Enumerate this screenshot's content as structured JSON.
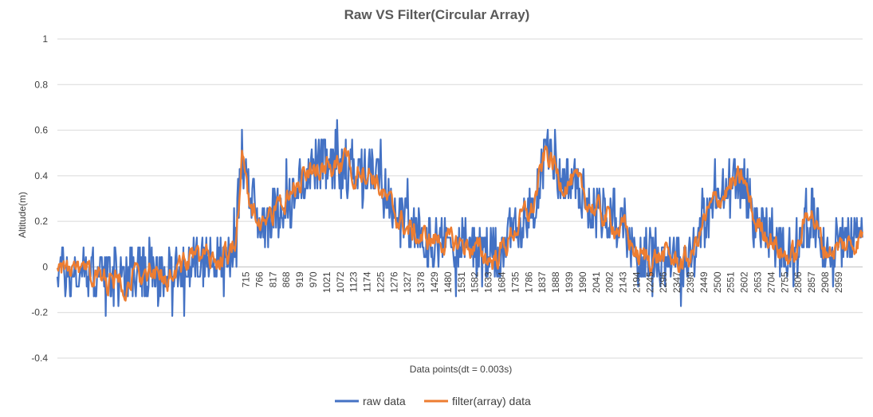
{
  "chart_data": {
    "type": "line",
    "title": "Raw VS Filter(Circular Array)",
    "xlabel": "Data points(dt = 0.003s)",
    "ylabel": "Altitude(m)",
    "ylim": [
      -0.4,
      1
    ],
    "yticks": [
      -0.4,
      -0.2,
      0,
      0.2,
      0.4,
      0.6,
      0.8,
      1
    ],
    "xlim": [
      1,
      3050
    ],
    "xticks": [
      715,
      766,
      817,
      868,
      919,
      970,
      1021,
      1072,
      1123,
      1174,
      1225,
      1276,
      1327,
      1378,
      1429,
      1480,
      1531,
      1582,
      1633,
      1684,
      1735,
      1786,
      1837,
      1888,
      1939,
      1990,
      2041,
      2092,
      2143,
      2194,
      2245,
      2296,
      2347,
      2398,
      2449,
      2500,
      2551,
      2602,
      2653,
      2704,
      2755,
      2806,
      2857,
      2908,
      2959
    ],
    "grid": true,
    "legend_position": "bottom",
    "series": [
      {
        "name": "raw data",
        "color": "#4472C4",
        "anchors": [
          [
            1,
            0.0
          ],
          [
            60,
            -0.04
          ],
          [
            120,
            -0.02
          ],
          [
            200,
            -0.05
          ],
          [
            300,
            -0.02
          ],
          [
            400,
            -0.04
          ],
          [
            500,
            0.02
          ],
          [
            560,
            0.04
          ],
          [
            620,
            0.03
          ],
          [
            660,
            0.06
          ],
          [
            680,
            0.2
          ],
          [
            700,
            0.5
          ],
          [
            720,
            0.38
          ],
          [
            760,
            0.2
          ],
          [
            800,
            0.22
          ],
          [
            850,
            0.28
          ],
          [
            900,
            0.3
          ],
          [
            950,
            0.44
          ],
          [
            1000,
            0.44
          ],
          [
            1050,
            0.42
          ],
          [
            1100,
            0.44
          ],
          [
            1150,
            0.45
          ],
          [
            1200,
            0.42
          ],
          [
            1250,
            0.3
          ],
          [
            1300,
            0.22
          ],
          [
            1350,
            0.14
          ],
          [
            1400,
            0.1
          ],
          [
            1450,
            0.12
          ],
          [
            1500,
            0.1
          ],
          [
            1550,
            0.1
          ],
          [
            1600,
            0.07
          ],
          [
            1650,
            0.04
          ],
          [
            1700,
            0.1
          ],
          [
            1750,
            0.18
          ],
          [
            1800,
            0.25
          ],
          [
            1850,
            0.5
          ],
          [
            1880,
            0.5
          ],
          [
            1900,
            0.4
          ],
          [
            1950,
            0.38
          ],
          [
            2000,
            0.3
          ],
          [
            2050,
            0.24
          ],
          [
            2100,
            0.22
          ],
          [
            2150,
            0.18
          ],
          [
            2200,
            0.04
          ],
          [
            2250,
            0.05
          ],
          [
            2300,
            0.05
          ],
          [
            2350,
            0.04
          ],
          [
            2400,
            0.05
          ],
          [
            2450,
            0.2
          ],
          [
            2500,
            0.3
          ],
          [
            2550,
            0.35
          ],
          [
            2600,
            0.38
          ],
          [
            2640,
            0.2
          ],
          [
            2700,
            0.15
          ],
          [
            2750,
            0.05
          ],
          [
            2800,
            0.05
          ],
          [
            2850,
            0.25
          ],
          [
            2900,
            0.1
          ],
          [
            2950,
            0.1
          ],
          [
            3000,
            0.12
          ],
          [
            3050,
            0.13
          ]
        ],
        "noise": 0.12
      },
      {
        "name": "filter(array) data",
        "color": "#ED7D31",
        "anchors": [
          [
            1,
            0.02
          ],
          [
            60,
            -0.04
          ],
          [
            120,
            -0.04
          ],
          [
            200,
            -0.06
          ],
          [
            300,
            -0.04
          ],
          [
            400,
            -0.05
          ],
          [
            500,
            0.02
          ],
          [
            560,
            0.03
          ],
          [
            620,
            0.04
          ],
          [
            660,
            0.05
          ],
          [
            680,
            0.15
          ],
          [
            700,
            0.48
          ],
          [
            720,
            0.32
          ],
          [
            760,
            0.2
          ],
          [
            800,
            0.22
          ],
          [
            850,
            0.28
          ],
          [
            900,
            0.32
          ],
          [
            950,
            0.44
          ],
          [
            1000,
            0.44
          ],
          [
            1050,
            0.42
          ],
          [
            1100,
            0.44
          ],
          [
            1150,
            0.44
          ],
          [
            1200,
            0.4
          ],
          [
            1250,
            0.28
          ],
          [
            1300,
            0.2
          ],
          [
            1350,
            0.14
          ],
          [
            1400,
            0.12
          ],
          [
            1450,
            0.12
          ],
          [
            1500,
            0.1
          ],
          [
            1550,
            0.1
          ],
          [
            1600,
            0.06
          ],
          [
            1650,
            0.03
          ],
          [
            1700,
            0.1
          ],
          [
            1750,
            0.2
          ],
          [
            1800,
            0.25
          ],
          [
            1850,
            0.5
          ],
          [
            1880,
            0.45
          ],
          [
            1900,
            0.38
          ],
          [
            1950,
            0.38
          ],
          [
            2000,
            0.3
          ],
          [
            2050,
            0.24
          ],
          [
            2100,
            0.2
          ],
          [
            2150,
            0.16
          ],
          [
            2200,
            0.04
          ],
          [
            2250,
            0.04
          ],
          [
            2300,
            0.05
          ],
          [
            2350,
            0.02
          ],
          [
            2400,
            0.04
          ],
          [
            2450,
            0.2
          ],
          [
            2500,
            0.3
          ],
          [
            2550,
            0.35
          ],
          [
            2600,
            0.38
          ],
          [
            2640,
            0.2
          ],
          [
            2700,
            0.14
          ],
          [
            2750,
            0.05
          ],
          [
            2800,
            0.05
          ],
          [
            2850,
            0.28
          ],
          [
            2900,
            0.08
          ],
          [
            2950,
            0.08
          ],
          [
            3000,
            0.1
          ],
          [
            3050,
            0.14
          ]
        ],
        "noise": 0.04
      }
    ]
  }
}
